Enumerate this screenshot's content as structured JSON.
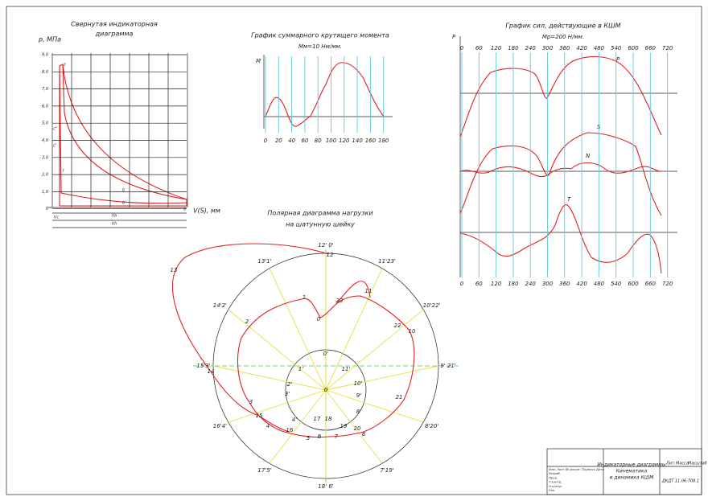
{
  "indicator": {
    "title": [
      "Свернутая индикаторная",
      "диаграмма"
    ],
    "y_label": "p, МПа",
    "x_label": "V(S), мм",
    "yticks": [
      "9,0",
      "8,0",
      "7,0",
      "6,0",
      "5,0",
      "4,0",
      "3,0",
      "2,0",
      "1,0",
      "0"
    ],
    "points": [
      "z",
      "c''",
      "c'",
      "r",
      "b",
      "b'",
      "a"
    ],
    "volumes": [
      "Vc",
      "Va",
      "Vh"
    ]
  },
  "torque": {
    "title": "График суммарного крутящего момента",
    "scale": "Мм=10 Нм/мм.",
    "y_label": "M",
    "xticks": [
      "0",
      "20",
      "40",
      "60",
      "80",
      "100",
      "120",
      "140",
      "160",
      "180"
    ]
  },
  "forces": {
    "title": "График сил, действующие в КШМ",
    "scale": "Мр=200 Н/мм.",
    "y_label": "P",
    "xticks": [
      "0",
      "60",
      "120",
      "180",
      "240",
      "300",
      "360",
      "420",
      "480",
      "540",
      "600",
      "660",
      "720"
    ],
    "curves": [
      "P",
      "S",
      "N",
      "T"
    ]
  },
  "polar": {
    "title": [
      "Полярная диаграмма нагрузки",
      "на шатунную шейку"
    ],
    "rim": [
      "12' 0'",
      "11'23'",
      "10'22'",
      "9' 21'",
      "8'20'",
      "7'19'",
      "18' 6'",
      "17'5'",
      "16'4'",
      "15'3'",
      "14'2'",
      "13'1'"
    ],
    "curve": [
      "0",
      "1",
      "2",
      "3",
      "4",
      "5",
      "6",
      "7",
      "8",
      "10",
      "11",
      "12",
      "13",
      "14",
      "15",
      "16",
      "17",
      "18",
      "19",
      "20",
      "21",
      "22",
      "23"
    ],
    "inner": [
      "0'",
      "1'",
      "11'",
      "2'",
      "10'",
      "3'",
      "9'",
      "4'",
      "8'",
      "0"
    ]
  },
  "stamp": {
    "title": [
      "Индикаторные диаграммы",
      "Кинематика",
      "и динамика КШМ"
    ],
    "columns": [
      "Лит.",
      "Масса",
      "Масштаб"
    ],
    "code": "ДКДТ 11.06.708.1",
    "rows": [
      "Изм. Лист № докум. Подпись Дата",
      "Разраб.",
      "Пров.",
      "Т.контр.",
      "Н.контр.",
      "Утв."
    ]
  }
}
